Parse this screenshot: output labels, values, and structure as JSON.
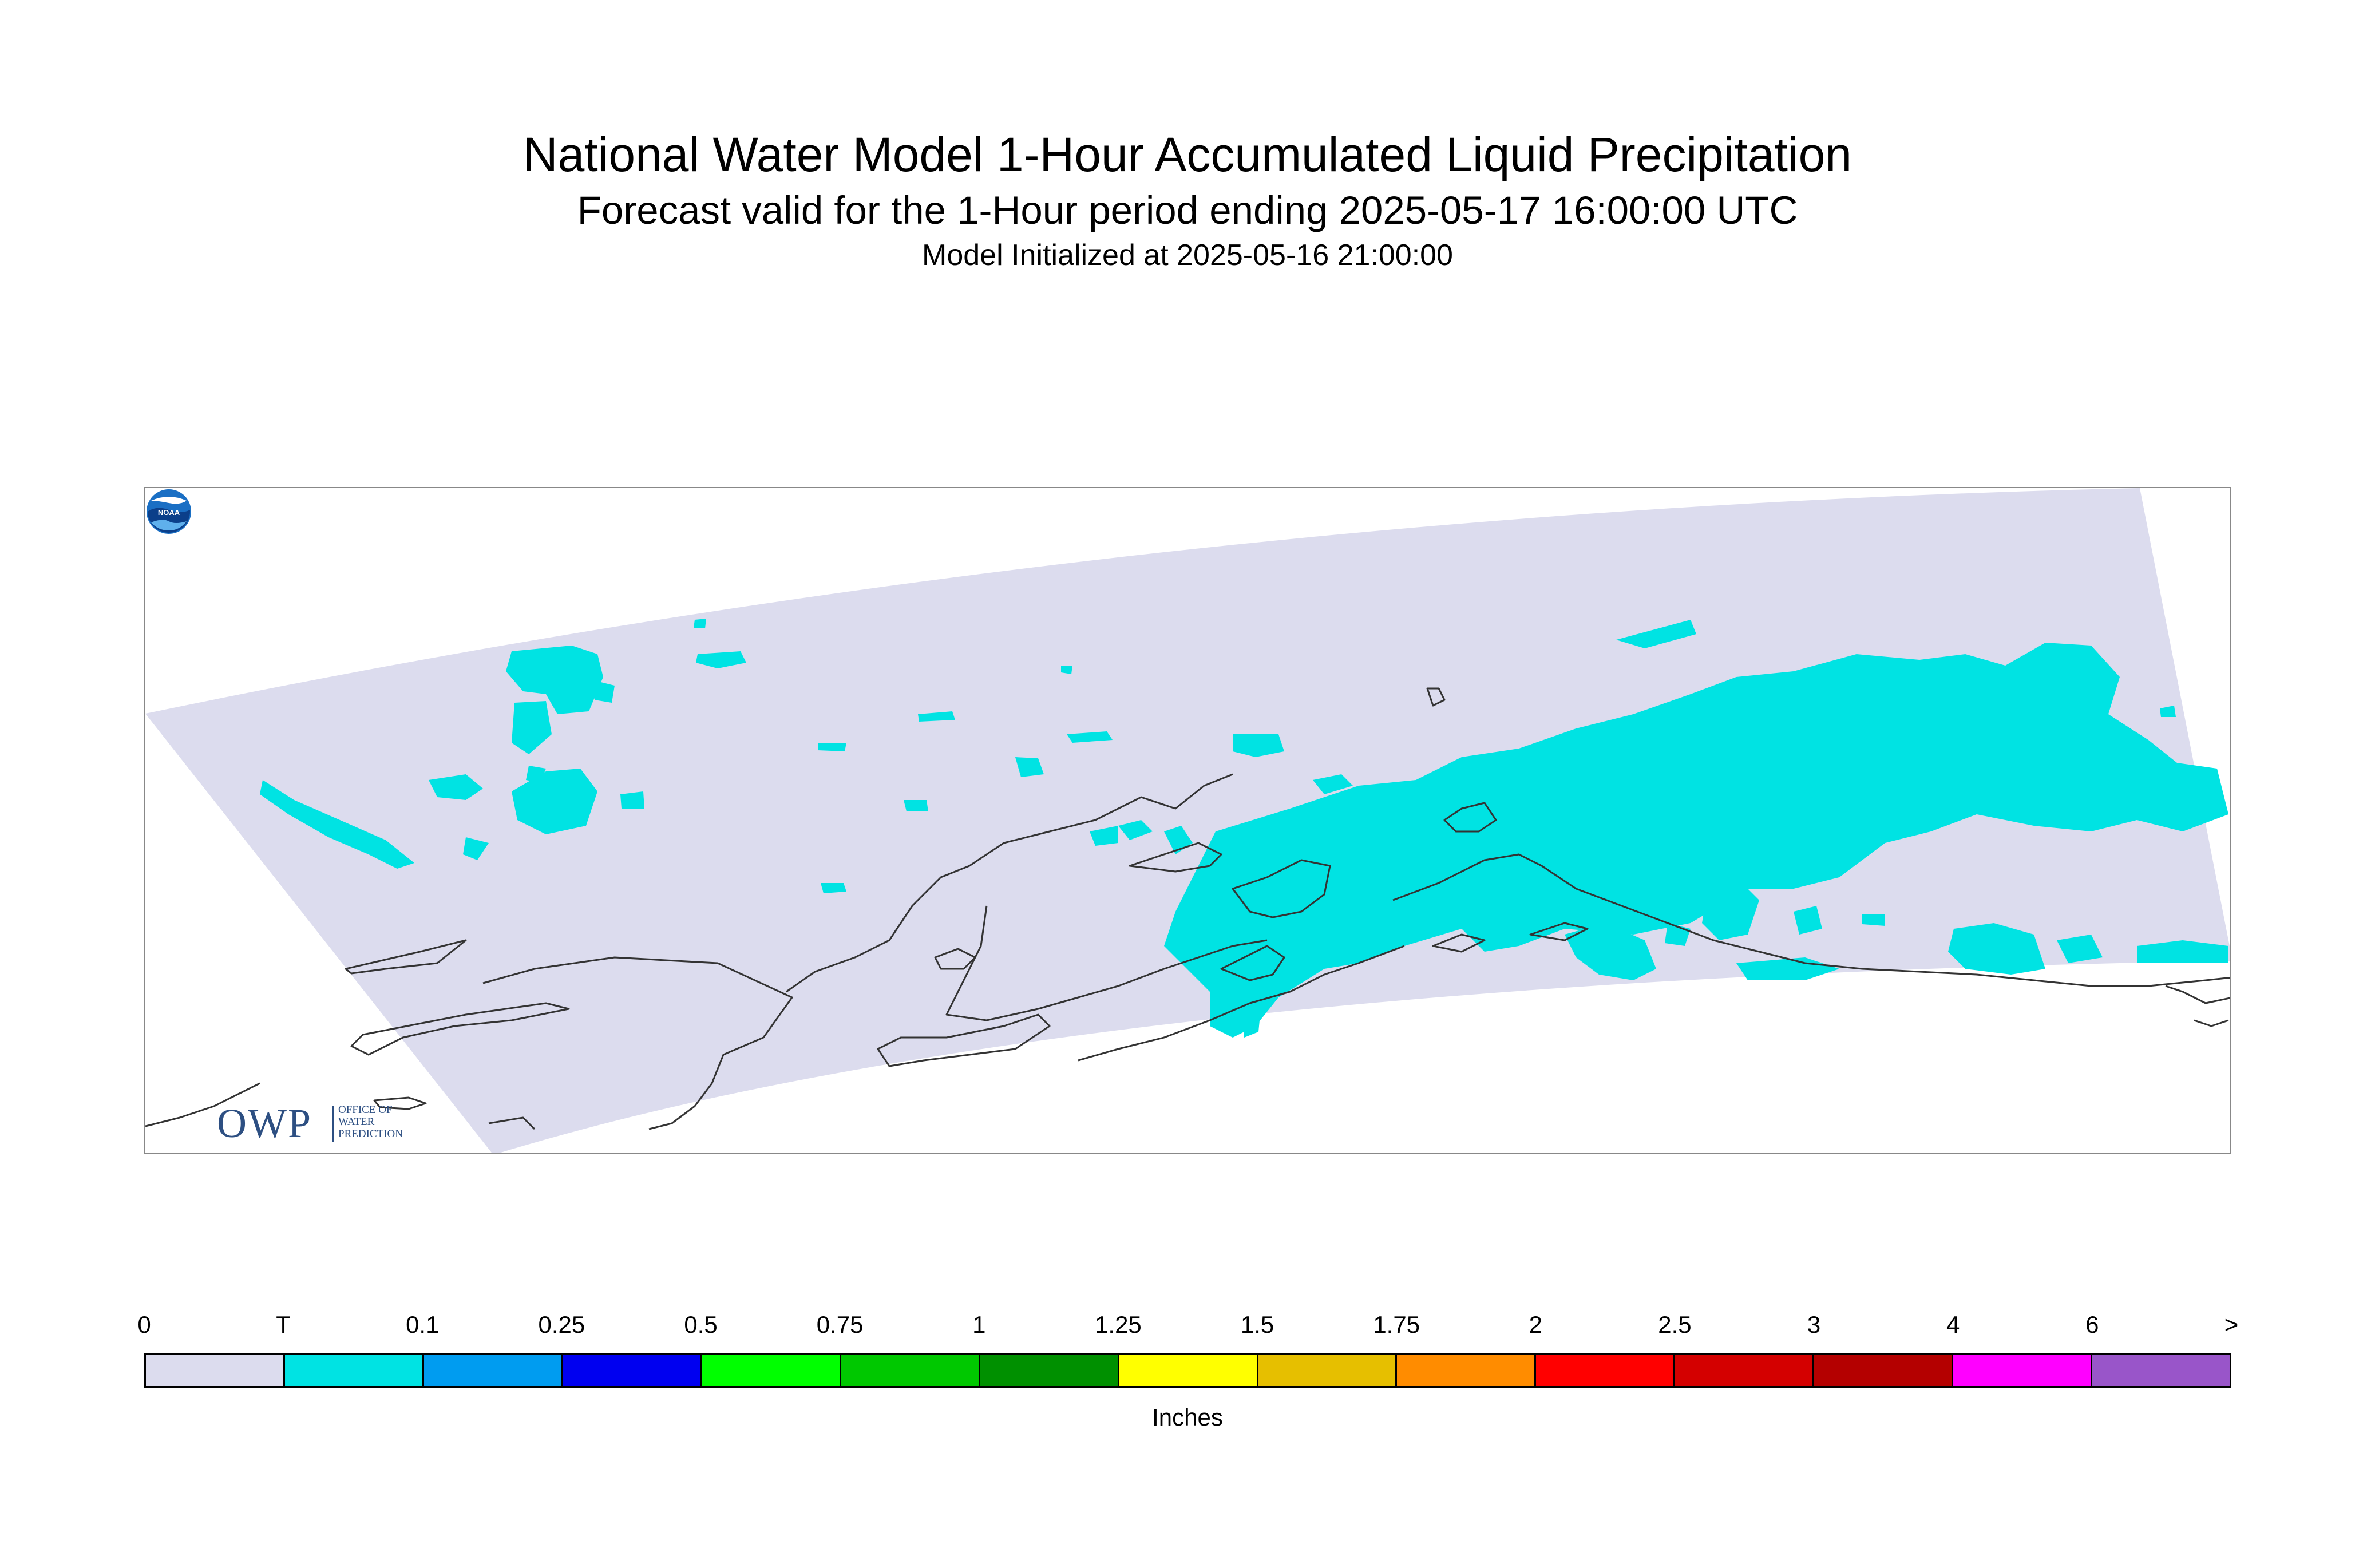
{
  "title": "National Water Model 1-Hour Accumulated Liquid Precipitation",
  "subtitle": "Forecast valid for the 1-Hour period ending 2025-05-17 16:00:00 UTC",
  "init_line": "Model Initialized at 2025-05-16 21:00:00",
  "logos": {
    "owp_main": "OWP",
    "owp_line1": "OFFICE OF",
    "owp_line2": "WATER",
    "owp_line3": "PREDICTION",
    "noaa_text": "NOAA"
  },
  "colors": {
    "domain_zero": "#dcdcee",
    "trace": "#00e3e3",
    "coastline": "#333333"
  },
  "legend": {
    "labels": [
      "0",
      "T",
      "0.1",
      "0.25",
      "0.5",
      "0.75",
      "1",
      "1.25",
      "1.5",
      "1.75",
      "2",
      "2.5",
      "3",
      "4",
      "6",
      ">"
    ],
    "colors": [
      "#dcdcee",
      "#00e3e3",
      "#009cf0",
      "#0000f0",
      "#00ff00",
      "#00c800",
      "#009000",
      "#ffff00",
      "#e6bf00",
      "#ff8c00",
      "#ff0000",
      "#d40000",
      "#b40000",
      "#ff00ff",
      "#9955c9"
    ],
    "units": "Inches"
  }
}
